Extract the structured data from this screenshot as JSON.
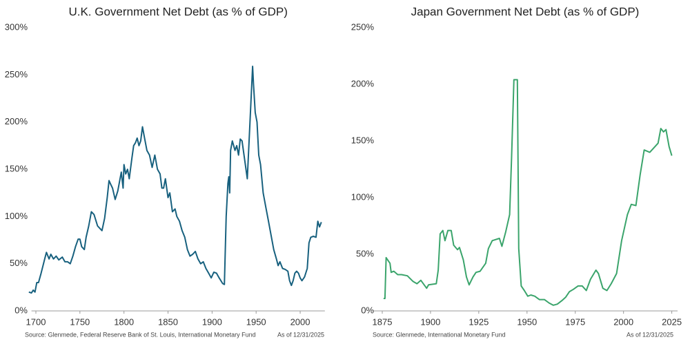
{
  "chart_data": [
    {
      "type": "line",
      "title": "U.K. Government Net Debt (as % of GDP)",
      "source": "Source: Glenmede, Federal Reserve Bank of St. Louis, International Monetary Fund",
      "as_of": "As of 12/31/2025",
      "color": "#17607e",
      "xlim": [
        1695,
        2028
      ],
      "xticks": [
        1700,
        1750,
        1800,
        1850,
        1900,
        1950,
        2000
      ],
      "ylim": [
        0,
        300
      ],
      "yticks": [
        {
          "value": 0,
          "label": "0%"
        },
        {
          "value": 50,
          "label": "50%"
        },
        {
          "value": 100,
          "label": "100%"
        },
        {
          "value": 150,
          "label": "150%"
        },
        {
          "value": 200,
          "label": "200%"
        },
        {
          "value": 250,
          "label": "250%"
        },
        {
          "value": 300,
          "label": "300%"
        }
      ],
      "x": [
        1692,
        1695,
        1697,
        1699,
        1701,
        1703,
        1706,
        1710,
        1712,
        1715,
        1717,
        1720,
        1723,
        1726,
        1730,
        1733,
        1736,
        1739,
        1742,
        1745,
        1748,
        1750,
        1752,
        1755,
        1757,
        1760,
        1763,
        1766,
        1770,
        1773,
        1775,
        1778,
        1781,
        1783,
        1785,
        1787,
        1790,
        1793,
        1797,
        1799,
        1800,
        1802,
        1804,
        1806,
        1809,
        1811,
        1813,
        1815,
        1817,
        1819,
        1821,
        1823,
        1826,
        1829,
        1832,
        1835,
        1838,
        1841,
        1843,
        1845,
        1847,
        1850,
        1852,
        1855,
        1858,
        1860,
        1863,
        1866,
        1869,
        1872,
        1875,
        1878,
        1881,
        1884,
        1887,
        1890,
        1893,
        1896,
        1899,
        1902,
        1905,
        1908,
        1912,
        1914,
        1916,
        1918,
        1919,
        1920,
        1921,
        1923,
        1926,
        1928,
        1930,
        1932,
        1934,
        1937,
        1940,
        1943,
        1946,
        1947,
        1949,
        1951,
        1953,
        1955,
        1958,
        1961,
        1964,
        1967,
        1970,
        1973,
        1975,
        1977,
        1980,
        1983,
        1986,
        1988,
        1990,
        1992,
        1994,
        1996,
        1998,
        2000,
        2002,
        2005,
        2008,
        2010,
        2012,
        2015,
        2018,
        2020,
        2022,
        2024
      ],
      "values": [
        20,
        19,
        22,
        20,
        30,
        30,
        40,
        55,
        62,
        55,
        60,
        55,
        58,
        54,
        57,
        52,
        52,
        50,
        58,
        68,
        76,
        76,
        68,
        65,
        78,
        90,
        105,
        102,
        90,
        87,
        85,
        98,
        120,
        138,
        134,
        130,
        118,
        127,
        147,
        130,
        155,
        145,
        150,
        140,
        162,
        175,
        178,
        183,
        175,
        180,
        195,
        185,
        170,
        165,
        152,
        165,
        150,
        145,
        130,
        130,
        140,
        120,
        125,
        105,
        108,
        100,
        95,
        85,
        78,
        65,
        58,
        60,
        63,
        55,
        50,
        52,
        45,
        40,
        35,
        41,
        40,
        35,
        29,
        28,
        100,
        135,
        142,
        125,
        170,
        180,
        170,
        175,
        165,
        182,
        180,
        160,
        140,
        200,
        259,
        240,
        210,
        200,
        165,
        155,
        125,
        110,
        95,
        80,
        65,
        55,
        48,
        52,
        45,
        44,
        42,
        32,
        27,
        32,
        40,
        42,
        40,
        35,
        32,
        36,
        45,
        72,
        78,
        79,
        78,
        95,
        89,
        94
      ]
    },
    {
      "type": "line",
      "title": "Japan Government Net Debt (as % of GDP)",
      "source": "Source: Glenmede, International Monetary Fund",
      "as_of": "As of 12/31/2025",
      "color": "#3aa46b",
      "xlim": [
        1870,
        2028
      ],
      "xticks": [
        1875,
        1900,
        1925,
        1950,
        1975,
        2000,
        2025
      ],
      "ylim": [
        0,
        250
      ],
      "yticks": [
        {
          "value": 0,
          "label": "0%"
        },
        {
          "value": 50,
          "label": "50%"
        },
        {
          "value": 100,
          "label": "100%"
        },
        {
          "value": 150,
          "label": "150%"
        },
        {
          "value": 200,
          "label": "200%"
        },
        {
          "value": 250,
          "label": "250%"
        }
      ],
      "x": [
        1875.7,
        1876.4,
        1877,
        1879,
        1879.6,
        1881,
        1883,
        1885,
        1888,
        1891,
        1893,
        1895,
        1898,
        1899,
        1903,
        1904,
        1905,
        1906.4,
        1907.5,
        1909,
        1910.7,
        1912,
        1914,
        1915,
        1917,
        1918.6,
        1920,
        1922,
        1923.6,
        1925.7,
        1928.6,
        1930,
        1932,
        1935.7,
        1937,
        1939,
        1941,
        1942,
        1943.2,
        1945,
        1945.7,
        1947,
        1948.6,
        1950.4,
        1952,
        1954,
        1956.4,
        1959,
        1961.4,
        1963.6,
        1965.7,
        1968,
        1970,
        1972,
        1974,
        1976.4,
        1978.6,
        1980.7,
        1982.9,
        1985.7,
        1987,
        1989.3,
        1991.4,
        1993.6,
        1996.4,
        1999,
        2002,
        2004,
        2006.4,
        2008.6,
        2010.7,
        2013.6,
        2017.9,
        2019.3,
        2020.7,
        2022,
        2023.6,
        2025
      ],
      "values": [
        11,
        11,
        47,
        42,
        34,
        35,
        32,
        32,
        31,
        26,
        24,
        27,
        20,
        23,
        24,
        36,
        68,
        71,
        62,
        71,
        71,
        58,
        54,
        56,
        45,
        30,
        23,
        30,
        34,
        35,
        42,
        55,
        62,
        64,
        57,
        70,
        85,
        135,
        204,
        204,
        55,
        22,
        18,
        13,
        14,
        13,
        10,
        10,
        7,
        5,
        6,
        9,
        12,
        17,
        19,
        22,
        22,
        18,
        28,
        36,
        33,
        20,
        18,
        24,
        33,
        62,
        85,
        94,
        93,
        120,
        142,
        140,
        148,
        161,
        158,
        160,
        145,
        137
      ]
    }
  ]
}
